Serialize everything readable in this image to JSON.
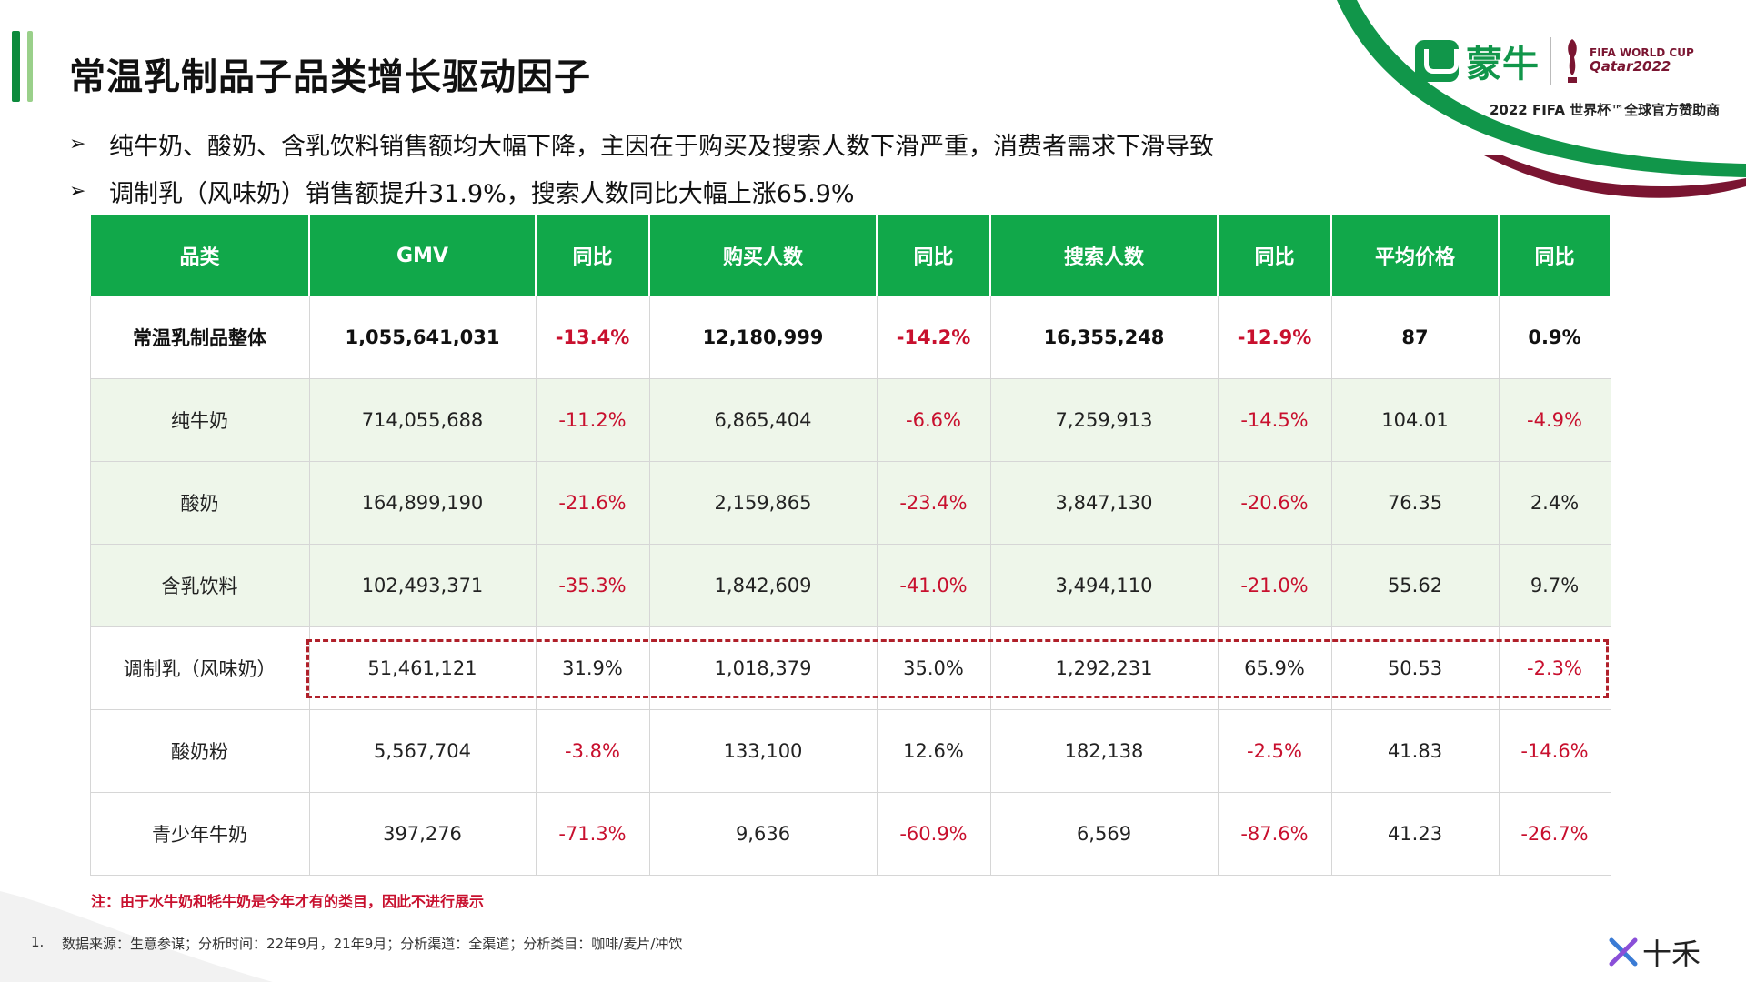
{
  "title": "常温乳制品子品类增长驱动因子",
  "bullets": [
    "纯牛奶、酸奶、含乳饮料销售额均大幅下降，主因在于购买及搜索人数下滑严重，消费者需求下滑导致",
    "调制乳（风味奶）销售额提升31.9%，搜索人数同比大幅上涨65.9%"
  ],
  "bullet_marker": "➢",
  "brand": {
    "name": "蒙牛",
    "fifa_line1": "FIFA WORLD CUP",
    "fifa_line2": "Qatar2022",
    "sponsor_text": "2022 FIFA 世界杯™全球官方赞助商",
    "green": "#11964a",
    "maroon": "#7a1531"
  },
  "table": {
    "headers": [
      "品类",
      "GMV",
      "同比",
      "购买人数",
      "同比",
      "搜索人数",
      "同比",
      "平均价格",
      "同比"
    ],
    "rows": [
      [
        "常温乳制品整体",
        "1,055,641,031",
        "-13.4%",
        "12,180,999",
        "-14.2%",
        "16,355,248",
        "-12.9%",
        "87",
        "0.9%"
      ],
      [
        "纯牛奶",
        "714,055,688",
        "-11.2%",
        "6,865,404",
        "-6.6%",
        "7,259,913",
        "-14.5%",
        "104.01",
        "-4.9%"
      ],
      [
        "酸奶",
        "164,899,190",
        "-21.6%",
        "2,159,865",
        "-23.4%",
        "3,847,130",
        "-20.6%",
        "76.35",
        "2.4%"
      ],
      [
        "含乳饮料",
        "102,493,371",
        "-35.3%",
        "1,842,609",
        "-41.0%",
        "3,494,110",
        "-21.0%",
        "55.62",
        "9.7%"
      ],
      [
        "调制乳（风味奶）",
        "51,461,121",
        "31.9%",
        "1,018,379",
        "35.0%",
        "1,292,231",
        "65.9%",
        "50.53",
        "-2.3%"
      ],
      [
        "酸奶粉",
        "5,567,704",
        "-3.8%",
        "133,100",
        "12.6%",
        "182,138",
        "-2.5%",
        "41.83",
        "-14.6%"
      ],
      [
        "青少年牛奶",
        "397,276",
        "-71.3%",
        "9,636",
        "-60.9%",
        "6,569",
        "-87.6%",
        "41.23",
        "-26.7%"
      ]
    ],
    "header_color": "#11a84a",
    "negative_color": "#c8102e",
    "highlighted_row": "调制乳（风味奶）"
  },
  "note": "注：由于水牛奶和牦牛奶是今年才有的类目，因此不进行展示",
  "source": {
    "number": "1.",
    "text": "数据来源：生意参谋；分析时间：22年9月，21年9月；分析渠道：全渠道；分析类目：咖啡/麦片/冲饮"
  },
  "corner_logo_text": "十禾"
}
